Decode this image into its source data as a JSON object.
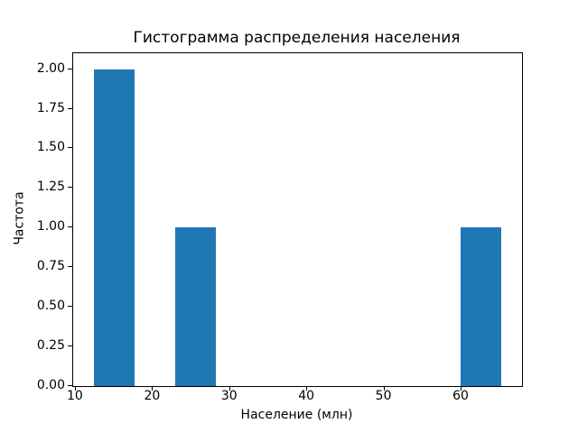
{
  "chart_data": {
    "type": "bar",
    "subtype": "histogram",
    "title": "Гистограмма распределения населения",
    "xlabel": "Население (млн)",
    "ylabel": "Частота",
    "bar_color": "#1f77b4",
    "axis_color": "#000000",
    "background_color": "#ffffff",
    "grid": false,
    "legend": null,
    "xlim": [
      9.655,
      67.845
    ],
    "ylim": [
      0,
      2.1
    ],
    "xticks": [
      {
        "value": 10,
        "label": "10"
      },
      {
        "value": 20,
        "label": "20"
      },
      {
        "value": 30,
        "label": "30"
      },
      {
        "value": 40,
        "label": "40"
      },
      {
        "value": 50,
        "label": "50"
      },
      {
        "value": 60,
        "label": "60"
      }
    ],
    "yticks": [
      {
        "value": 0.0,
        "label": "0.00"
      },
      {
        "value": 0.25,
        "label": "0.25"
      },
      {
        "value": 0.5,
        "label": "0.50"
      },
      {
        "value": 0.75,
        "label": "0.75"
      },
      {
        "value": 1.0,
        "label": "1.00"
      },
      {
        "value": 1.25,
        "label": "1.25"
      },
      {
        "value": 1.5,
        "label": "1.50"
      },
      {
        "value": 1.75,
        "label": "1.75"
      },
      {
        "value": 2.0,
        "label": "2.00"
      }
    ],
    "bins": {
      "range_start": 12.3,
      "range_end": 65.2,
      "bin_count": 10,
      "bin_width": 5.29
    },
    "bars": [
      {
        "x0": 12.3,
        "x1": 17.59,
        "count": 2
      },
      {
        "x0": 22.88,
        "x1": 28.17,
        "count": 1
      },
      {
        "x0": 59.91,
        "x1": 65.2,
        "count": 1
      }
    ]
  }
}
